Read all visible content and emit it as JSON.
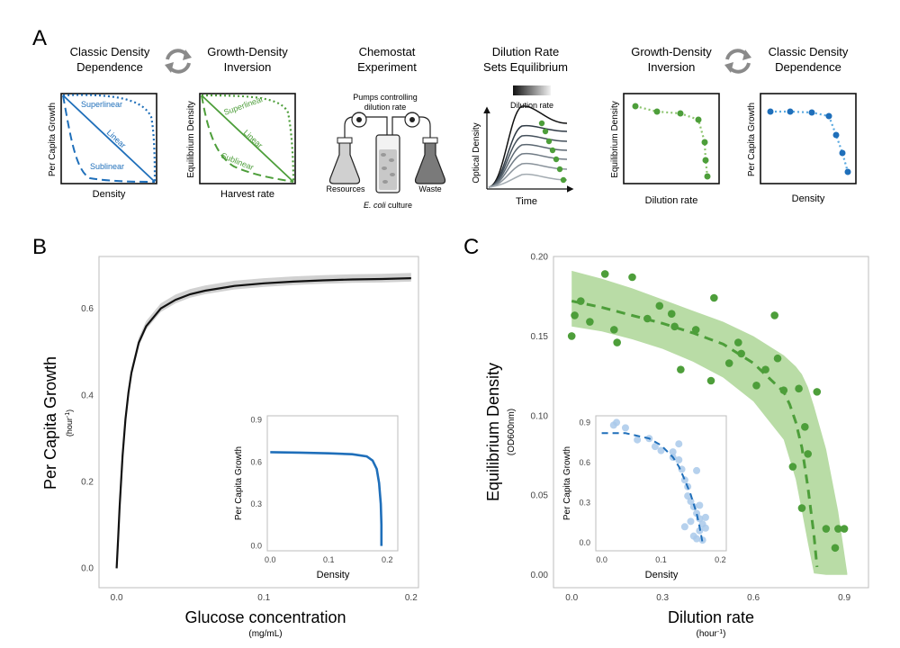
{
  "colors": {
    "blue": "#1f6fba",
    "green": "#4d9e3a",
    "green_light": "#8cc46e",
    "green_band": "#b9dca6",
    "blue_light": "#a9c9ea",
    "grey": "#888888",
    "dark": "#222222"
  },
  "panel_a": {
    "letter": "A",
    "p1": {
      "title_line1": "Classic Density",
      "title_line2": "Dependence",
      "ylabel": "Per Capita Growth",
      "xlabel": "Density",
      "curve_labels": {
        "superlinear": "Superlinear",
        "linear": "Linear",
        "sublinear": "Sublinear"
      }
    },
    "p2": {
      "title_line1": "Growth-Density",
      "title_line2": "Inversion",
      "ylabel": "Equilibrium Density",
      "xlabel": "Harvest rate",
      "curve_labels": {
        "superlinear": "Superlinear",
        "linear": "Linear",
        "sublinear": "Sublinear"
      }
    },
    "p3": {
      "title_line1": "Chemostat",
      "title_line2": "Experiment",
      "pumps_line1": "Pumps controlling",
      "pumps_line2": "dilution rate",
      "resources": "Resources",
      "waste": "Waste",
      "culture_italic": "E. coli",
      "culture_rest": " culture"
    },
    "p4": {
      "title_line1": "Dilution Rate",
      "title_line2": "Sets Equilibrium",
      "gradient_label": "Dilution rate",
      "ylabel": "Optical Density",
      "xlabel": "Time"
    },
    "p5": {
      "title_line1": "Growth-Density",
      "title_line2": "Inversion",
      "ylabel": "Equilibrium Density",
      "xlabel": "Dilution rate"
    },
    "p6": {
      "title_line1": "Classic Density",
      "title_line2": "Dependence",
      "ylabel": "Per Capita Growth",
      "xlabel": "Density"
    }
  },
  "chart_data": [
    {
      "id": "B-main",
      "type": "line",
      "panel_letter": "B",
      "xlabel": "Glucose concentration",
      "xunit": "(mg/mL)",
      "ylabel": "Per Capita Growth",
      "yunit": "(hour",
      "yunit_sup": "-1",
      "yunit_close": ")",
      "xlim": [
        -0.012,
        0.205
      ],
      "ylim": [
        -0.045,
        0.72
      ],
      "xticks": [
        0.0,
        0.1,
        0.2
      ],
      "xtick_labels": [
        "0.0",
        "0.1",
        "0.2"
      ],
      "yticks": [
        0.0,
        0.2,
        0.4,
        0.6
      ],
      "ytick_labels": [
        "0.0",
        "0.2",
        "0.4",
        "0.6"
      ],
      "series": [
        {
          "name": "Per capita growth (posterior mean)",
          "x": [
            0.0,
            0.001,
            0.002,
            0.004,
            0.006,
            0.008,
            0.01,
            0.015,
            0.02,
            0.03,
            0.04,
            0.05,
            0.06,
            0.08,
            0.1,
            0.12,
            0.14,
            0.16,
            0.18,
            0.2
          ],
          "y": [
            0.0,
            0.07,
            0.141,
            0.26,
            0.344,
            0.405,
            0.451,
            0.521,
            0.559,
            0.6,
            0.62,
            0.633,
            0.641,
            0.652,
            0.658,
            0.662,
            0.665,
            0.667,
            0.668,
            0.67
          ]
        }
      ],
      "band": {
        "name": "posterior draws",
        "lower_offset": -0.008,
        "upper_offset": 0.012
      }
    },
    {
      "id": "B-inset",
      "type": "line",
      "xlabel": "Density",
      "ylabel": "Per Capita Growth",
      "xlim": [
        -0.005,
        0.218
      ],
      "ylim": [
        -0.035,
        0.93
      ],
      "xticks": [
        0.0,
        0.1,
        0.2
      ],
      "xtick_labels": [
        "0.0",
        "0.1",
        "0.2"
      ],
      "yticks": [
        0.0,
        0.3,
        0.6,
        0.9
      ],
      "ytick_labels": [
        "0.0",
        "0.3",
        "0.6",
        "0.9"
      ],
      "series": [
        {
          "name": "Per capita growth vs density",
          "x": [
            0.0,
            0.05,
            0.1,
            0.14,
            0.165,
            0.175,
            0.182,
            0.186,
            0.189,
            0.19,
            0.19
          ],
          "y": [
            0.67,
            0.667,
            0.662,
            0.655,
            0.64,
            0.61,
            0.55,
            0.45,
            0.3,
            0.15,
            0.0
          ]
        }
      ]
    },
    {
      "id": "C-main",
      "type": "scatter",
      "panel_letter": "C",
      "xlabel": "Dilution rate",
      "xunit": "(hour",
      "xunit_sup": "-1",
      "xunit_close": ")",
      "ylabel": "Equilibrium Density",
      "yunit": "(OD600nm)",
      "xlim": [
        -0.06,
        0.98
      ],
      "ylim": [
        -0.008,
        0.2
      ],
      "xticks": [
        0.0,
        0.3,
        0.6,
        0.9
      ],
      "xtick_labels": [
        "0.0",
        "0.3",
        "0.6",
        "0.9"
      ],
      "yticks": [
        0.0,
        0.05,
        0.1,
        0.15,
        0.2
      ],
      "ytick_labels": [
        "0.00",
        "0.05",
        "0.10",
        "0.15",
        "0.20"
      ],
      "points": {
        "x": [
          0.0,
          0.01,
          0.03,
          0.06,
          0.11,
          0.14,
          0.15,
          0.2,
          0.25,
          0.29,
          0.33,
          0.34,
          0.36,
          0.41,
          0.46,
          0.47,
          0.52,
          0.55,
          0.56,
          0.61,
          0.64,
          0.67,
          0.68,
          0.7,
          0.73,
          0.75,
          0.76,
          0.77,
          0.78,
          0.81,
          0.84,
          0.87,
          0.88,
          0.9
        ],
        "y": [
          0.15,
          0.163,
          0.172,
          0.159,
          0.189,
          0.154,
          0.146,
          0.187,
          0.161,
          0.169,
          0.164,
          0.156,
          0.129,
          0.154,
          0.122,
          0.174,
          0.133,
          0.146,
          0.139,
          0.119,
          0.129,
          0.163,
          0.136,
          0.116,
          0.068,
          0.117,
          0.042,
          0.093,
          0.076,
          0.115,
          0.029,
          0.017,
          0.029,
          0.029
        ]
      },
      "fit": {
        "name": "model fit",
        "x": [
          0.0,
          0.1,
          0.2,
          0.3,
          0.4,
          0.5,
          0.6,
          0.65,
          0.7,
          0.72,
          0.74,
          0.76,
          0.78,
          0.8,
          0.81
        ],
        "y": [
          0.172,
          0.168,
          0.163,
          0.158,
          0.152,
          0.145,
          0.133,
          0.124,
          0.115,
          0.107,
          0.096,
          0.08,
          0.055,
          0.025,
          0.005
        ]
      },
      "band": {
        "name": "95% interval",
        "x": [
          0.0,
          0.1,
          0.2,
          0.3,
          0.4,
          0.5,
          0.6,
          0.7,
          0.74,
          0.76,
          0.78,
          0.8,
          0.84,
          0.88,
          0.91
        ],
        "lower": [
          0.156,
          0.153,
          0.148,
          0.142,
          0.134,
          0.124,
          0.109,
          0.085,
          0.06,
          0.04,
          0.02,
          0.001,
          0.0,
          0.0,
          0.0
        ],
        "upper": [
          0.191,
          0.186,
          0.18,
          0.173,
          0.166,
          0.159,
          0.15,
          0.138,
          0.131,
          0.126,
          0.118,
          0.106,
          0.079,
          0.04,
          0.001
        ]
      }
    },
    {
      "id": "C-inset",
      "type": "scatter",
      "xlabel": "Density",
      "ylabel": "Per Capita Growth",
      "xlim": [
        -0.01,
        0.21
      ],
      "ylim": [
        -0.06,
        0.95
      ],
      "xticks": [
        0.0,
        0.1,
        0.2
      ],
      "xtick_labels": [
        "0.0",
        "0.1",
        "0.2"
      ],
      "yticks": [
        0.0,
        0.3,
        0.6,
        0.9
      ],
      "ytick_labels": [
        "0.0",
        "0.3",
        "0.6",
        "0.9"
      ],
      "points": {
        "x": [
          0.02,
          0.025,
          0.04,
          0.06,
          0.08,
          0.09,
          0.1,
          0.12,
          0.13,
          0.135,
          0.14,
          0.145,
          0.15,
          0.155,
          0.16,
          0.165,
          0.17,
          0.15,
          0.165,
          0.14,
          0.155,
          0.16,
          0.17,
          0.175,
          0.145,
          0.13,
          0.12,
          0.16,
          0.175,
          0.165
        ],
        "y": [
          0.88,
          0.9,
          0.86,
          0.77,
          0.78,
          0.72,
          0.69,
          0.64,
          0.62,
          0.55,
          0.47,
          0.42,
          0.31,
          0.27,
          0.22,
          0.18,
          0.14,
          0.16,
          0.09,
          0.12,
          0.05,
          0.03,
          0.02,
          0.19,
          0.35,
          0.74,
          0.68,
          0.54,
          0.11,
          0.28
        ]
      },
      "fit": {
        "name": "model fit",
        "x": [
          0.0,
          0.04,
          0.08,
          0.1,
          0.12,
          0.13,
          0.14,
          0.15,
          0.16,
          0.165,
          0.17
        ],
        "y": [
          0.82,
          0.82,
          0.78,
          0.73,
          0.64,
          0.57,
          0.47,
          0.36,
          0.22,
          0.12,
          0.0
        ]
      }
    }
  ]
}
